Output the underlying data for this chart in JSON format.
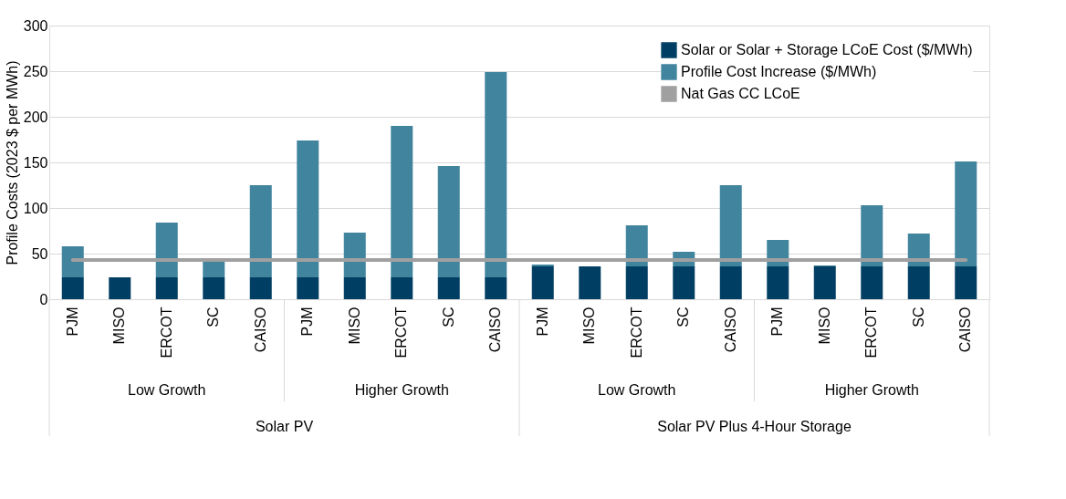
{
  "chart_data": {
    "type": "bar",
    "stacked": true,
    "ylabel": "Profile Costs (2023 $ per MWh)",
    "categories": [
      "PJM",
      "MISO",
      "ERCOT",
      "SC",
      "CAISO",
      "PJM",
      "MISO",
      "ERCOT",
      "SC",
      "CAISO",
      "PJM",
      "MISO",
      "ERCOT",
      "SC",
      "CAISO",
      "PJM",
      "MISO",
      "ERCOT",
      "SC",
      "CAISO"
    ],
    "series": [
      {
        "name": "Solar or Solar + Storage LCoE Cost ($/MWh)",
        "color": "#003f63",
        "values": [
          24,
          24,
          24,
          24,
          24,
          24,
          24,
          24,
          24,
          24,
          36,
          36,
          36,
          36,
          36,
          36,
          36,
          36,
          36,
          36
        ]
      },
      {
        "name": "Profile Cost Increase ($/MWh)",
        "color": "#41849e",
        "values": [
          34,
          0,
          60,
          18,
          101,
          150,
          49,
          166,
          122,
          225,
          2,
          null,
          45,
          16,
          89,
          29,
          1,
          67,
          36,
          115
        ]
      }
    ],
    "ref_lines": [
      {
        "axis": "y",
        "value": 43,
        "label": "Nat Gas CC LCoE",
        "color": "#a0a0a0"
      }
    ],
    "annotations": [
      "Low Growth",
      "Higher Growth",
      "Low Growth",
      "Higher Growth",
      "Solar PV",
      "Solar PV Plus 4-Hour Storage"
    ],
    "ylim": [
      0,
      300
    ],
    "yticks": [
      0,
      50,
      100,
      150,
      200,
      250,
      300
    ],
    "grid": "y",
    "legend": "top right"
  }
}
